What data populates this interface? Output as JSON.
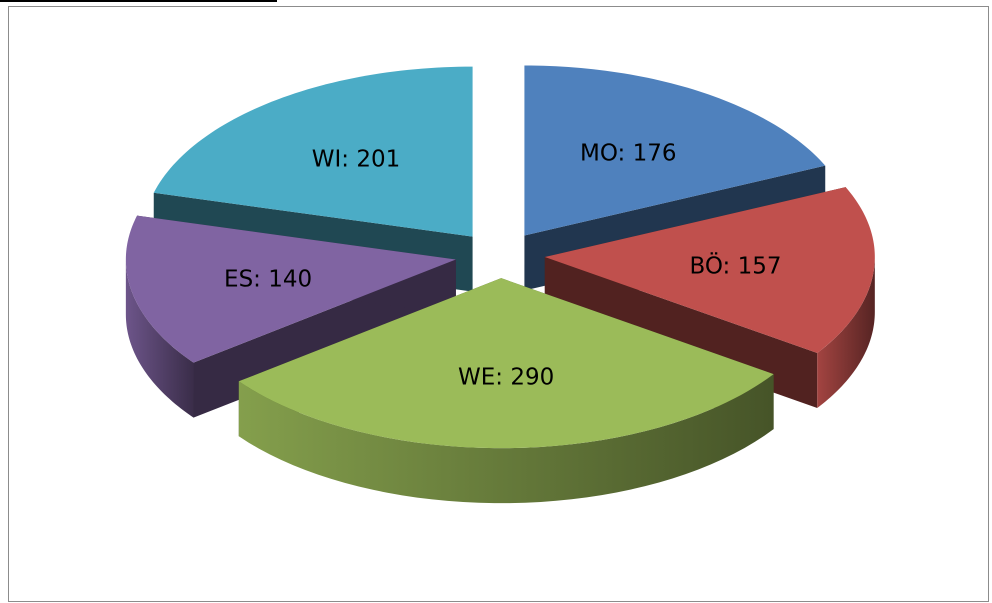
{
  "chart_data": {
    "type": "pie",
    "style": "3d-exploded",
    "slices": [
      {
        "label": "MO: 176",
        "value": 176,
        "color": "#4f81bd"
      },
      {
        "label": "BÖ: 157",
        "value": 157,
        "color": "#c0504d"
      },
      {
        "label": "WE: 290",
        "value": 290,
        "color": "#9bbb59"
      },
      {
        "label": "ES: 140",
        "value": 140,
        "color": "#8064a2"
      },
      {
        "label": "WI: 201",
        "value": 201,
        "color": "#4bacc6"
      }
    ],
    "legend": "none"
  }
}
